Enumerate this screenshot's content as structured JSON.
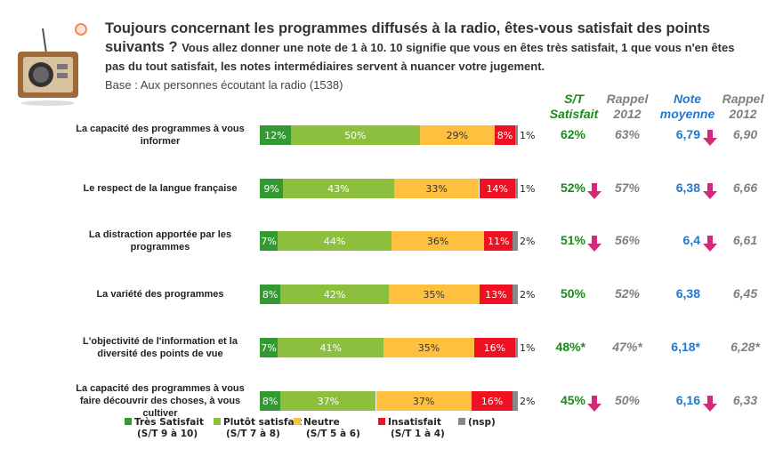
{
  "question": {
    "title": "Toujours concernant les programmes diffusés à la radio, êtes-vous satisfait des points suivants ?",
    "subtitle": "Vous allez donner une note de 1 à 10. 10 signifie que vous en êtes très satisfait, 1 que vous n'en êtes pas du tout satisfait, les notes intermédiaires servent à nuancer votre jugement.",
    "base": "Base : Aux personnes écoutant la radio (1538)"
  },
  "headers": {
    "st": "S/T Satisfait",
    "st_rappel": "Rappel 2012",
    "note": "Note moyenne",
    "note_rappel": "Rappel 2012"
  },
  "colors": {
    "tres": "#339933",
    "plutot": "#8dbf3f",
    "neutre": "#ffc040",
    "insat": "#ee1122",
    "nsp": "#888888",
    "st": "#1a8a1a",
    "note": "#1f78d1",
    "rappel": "#808080",
    "arrow": "#d6287a"
  },
  "chart_data": {
    "type": "bar",
    "stacked": true,
    "orientation": "horizontal",
    "legend": [
      {
        "name": "Très Satisfait",
        "sub": "(S/T 9 à 10)"
      },
      {
        "name": "Plutôt satisfait",
        "sub": "(S/T 7 à 8)"
      },
      {
        "name": "Neutre",
        "sub": "(S/T 5 à 6)"
      },
      {
        "name": "Insatisfait",
        "sub": "(S/T 1 à 4)"
      },
      {
        "name": "(nsp)",
        "sub": ""
      }
    ],
    "legend_position": "bottom",
    "rows": [
      {
        "label": "La capacité des programmes à vous informer",
        "values": [
          12,
          50,
          29,
          8,
          1
        ],
        "st": "62%",
        "st_down": false,
        "st_rappel": "63%",
        "note": "6,79",
        "note_down": true,
        "note_rappel": "6,90"
      },
      {
        "label": "Le respect de la langue française",
        "values": [
          9,
          43,
          33,
          14,
          1
        ],
        "st": "52%",
        "st_down": true,
        "st_rappel": "57%",
        "note": "6,38",
        "note_down": true,
        "note_rappel": "6,66"
      },
      {
        "label": "La distraction apportée par les programmes",
        "values": [
          7,
          44,
          36,
          11,
          2
        ],
        "st": "51%",
        "st_down": true,
        "st_rappel": "56%",
        "note": "6,4",
        "note_down": true,
        "note_rappel": "6,61"
      },
      {
        "label": "La variété des programmes",
        "values": [
          8,
          42,
          35,
          13,
          2
        ],
        "st": "50%",
        "st_down": false,
        "st_rappel": "52%",
        "note": "6,38",
        "note_down": false,
        "note_rappel": "6,45"
      },
      {
        "label": "L'objectivité de l'information et la diversité des points de vue",
        "values": [
          7,
          41,
          35,
          16,
          1
        ],
        "st": "48%*",
        "st_down": false,
        "st_rappel": "47%*",
        "note": "6,18*",
        "note_down": false,
        "note_rappel": "6,28*"
      },
      {
        "label": "La capacité des programmes à vous faire découvrir des choses, à vous cultiver",
        "values": [
          8,
          37,
          37,
          16,
          2
        ],
        "st": "45%",
        "st_down": true,
        "st_rappel": "50%",
        "note": "6,16",
        "note_down": true,
        "note_rappel": "6,33"
      }
    ]
  }
}
